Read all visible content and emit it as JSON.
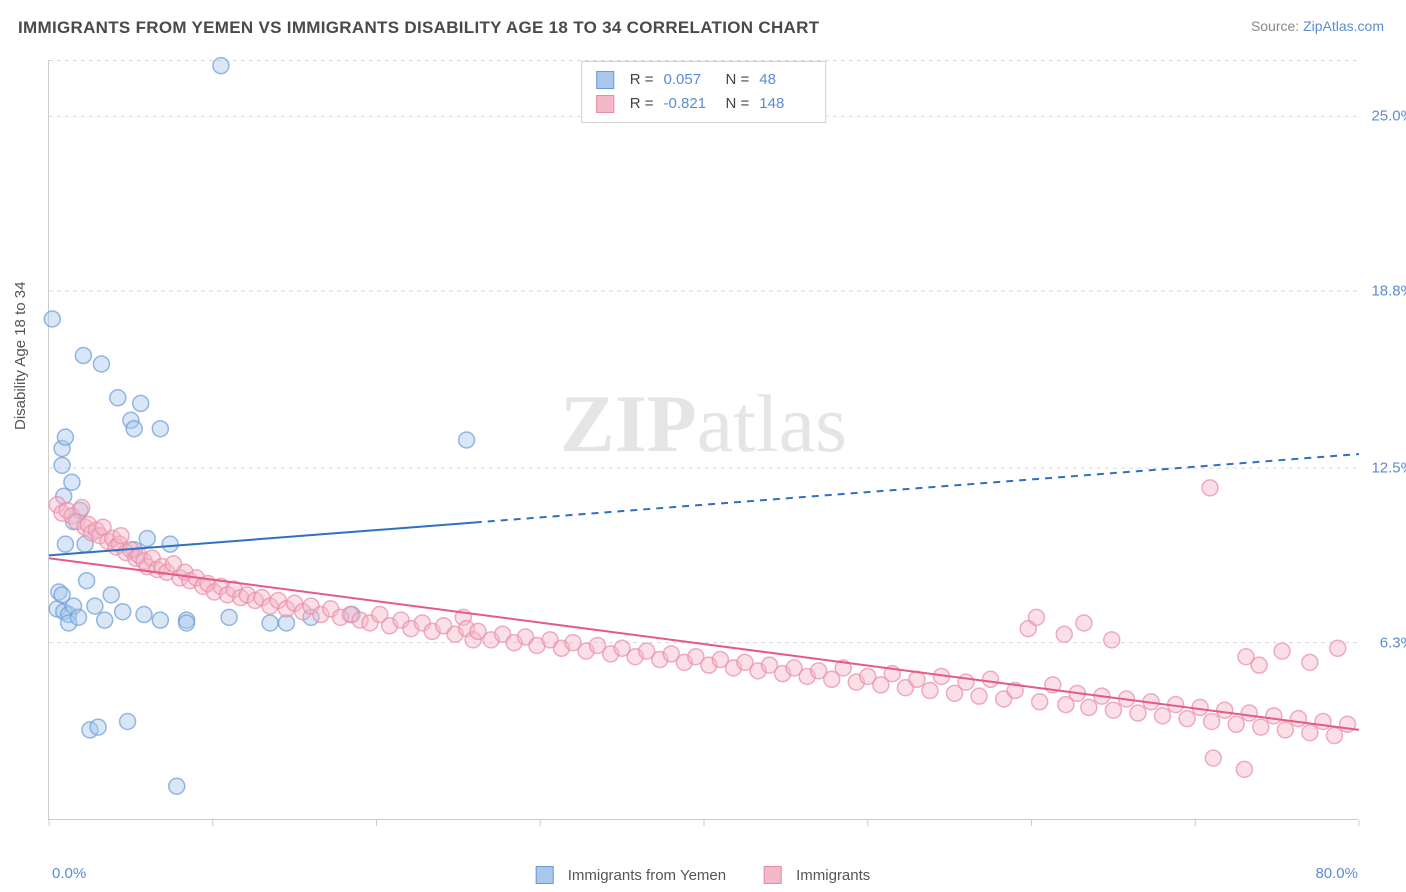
{
  "title": "IMMIGRANTS FROM YEMEN VS IMMIGRANTS DISABILITY AGE 18 TO 34 CORRELATION CHART",
  "source_label": "Source: ",
  "source_name": "ZipAtlas.com",
  "watermark_zip": "ZIP",
  "watermark_atlas": "atlas",
  "chart": {
    "type": "scatter",
    "ylabel": "Disability Age 18 to 34",
    "xlim": [
      0,
      80
    ],
    "ylim": [
      0,
      27
    ],
    "x_min_label": "0.0%",
    "x_max_label": "80.0%",
    "y_ticks": [
      6.3,
      12.5,
      18.8,
      25.0
    ],
    "y_tick_labels": [
      "6.3%",
      "12.5%",
      "18.8%",
      "25.0%"
    ],
    "x_ticks": [
      0,
      10,
      20,
      30,
      40,
      50,
      60,
      70,
      80
    ],
    "background": "#ffffff",
    "grid_color": "#d8d8d8",
    "marker_radius": 8,
    "marker_opacity": 0.45,
    "series": [
      {
        "name": "Immigrants from Yemen",
        "color_fill": "#a8c7ea",
        "color_stroke": "#6a9bd8",
        "trend": {
          "x1": 0,
          "y1": 9.4,
          "x2": 80,
          "y2": 13.0,
          "solid_until_x": 26,
          "stroke": "#2f6fc4",
          "width": 2
        },
        "R_label": "R = ",
        "R": "0.057",
        "N_label": "N = ",
        "N": "48",
        "points": [
          [
            0.2,
            17.8
          ],
          [
            0.5,
            7.5
          ],
          [
            0.6,
            8.1
          ],
          [
            0.8,
            13.2
          ],
          [
            0.8,
            12.6
          ],
          [
            0.8,
            8.0
          ],
          [
            0.9,
            11.5
          ],
          [
            0.9,
            7.4
          ],
          [
            1.0,
            13.6
          ],
          [
            1.0,
            9.8
          ],
          [
            1.2,
            7.3
          ],
          [
            1.2,
            7.0
          ],
          [
            1.4,
            12.0
          ],
          [
            1.5,
            10.6
          ],
          [
            1.5,
            7.6
          ],
          [
            1.8,
            7.2
          ],
          [
            1.9,
            11.0
          ],
          [
            2.1,
            16.5
          ],
          [
            2.2,
            9.8
          ],
          [
            2.3,
            8.5
          ],
          [
            2.5,
            3.2
          ],
          [
            2.8,
            7.6
          ],
          [
            3.0,
            3.3
          ],
          [
            3.2,
            16.2
          ],
          [
            3.4,
            7.1
          ],
          [
            3.8,
            8.0
          ],
          [
            4.2,
            15.0
          ],
          [
            4.5,
            7.4
          ],
          [
            4.8,
            3.5
          ],
          [
            5.0,
            14.2
          ],
          [
            5.2,
            13.9
          ],
          [
            5.2,
            9.6
          ],
          [
            5.6,
            14.8
          ],
          [
            5.8,
            7.3
          ],
          [
            6.0,
            10.0
          ],
          [
            6.8,
            7.1
          ],
          [
            6.8,
            13.9
          ],
          [
            7.4,
            9.8
          ],
          [
            7.8,
            1.2
          ],
          [
            8.4,
            7.1
          ],
          [
            8.4,
            7.0
          ],
          [
            10.5,
            26.8
          ],
          [
            11.0,
            7.2
          ],
          [
            13.5,
            7.0
          ],
          [
            14.5,
            7.0
          ],
          [
            16.0,
            7.2
          ],
          [
            18.5,
            7.3
          ],
          [
            25.5,
            13.5
          ]
        ]
      },
      {
        "name": "Immigrants",
        "color_fill": "#f5b8c9",
        "color_stroke": "#e88ba7",
        "trend": {
          "x1": 0,
          "y1": 9.3,
          "x2": 80,
          "y2": 3.2,
          "solid_until_x": 80,
          "stroke": "#e35a86",
          "width": 2
        },
        "R_label": "R = ",
        "R": "-0.821",
        "N_label": "N = ",
        "N": "148",
        "points": [
          [
            0.5,
            11.2
          ],
          [
            0.8,
            10.9
          ],
          [
            1.1,
            11.0
          ],
          [
            1.4,
            10.8
          ],
          [
            1.7,
            10.6
          ],
          [
            2.0,
            11.1
          ],
          [
            2.2,
            10.4
          ],
          [
            2.4,
            10.5
          ],
          [
            2.6,
            10.2
          ],
          [
            2.9,
            10.3
          ],
          [
            3.1,
            10.1
          ],
          [
            3.3,
            10.4
          ],
          [
            3.6,
            9.9
          ],
          [
            3.9,
            10.0
          ],
          [
            4.1,
            9.7
          ],
          [
            4.3,
            9.8
          ],
          [
            4.4,
            10.1
          ],
          [
            4.7,
            9.5
          ],
          [
            5.0,
            9.6
          ],
          [
            5.3,
            9.3
          ],
          [
            5.5,
            9.4
          ],
          [
            5.8,
            9.2
          ],
          [
            6.0,
            9.0
          ],
          [
            6.3,
            9.3
          ],
          [
            6.6,
            8.9
          ],
          [
            6.9,
            9.0
          ],
          [
            7.2,
            8.8
          ],
          [
            7.6,
            9.1
          ],
          [
            8.0,
            8.6
          ],
          [
            8.3,
            8.8
          ],
          [
            8.6,
            8.5
          ],
          [
            9.0,
            8.6
          ],
          [
            9.4,
            8.3
          ],
          [
            9.7,
            8.4
          ],
          [
            10.1,
            8.1
          ],
          [
            10.5,
            8.3
          ],
          [
            10.9,
            8.0
          ],
          [
            11.3,
            8.2
          ],
          [
            11.7,
            7.9
          ],
          [
            12.1,
            8.0
          ],
          [
            12.6,
            7.8
          ],
          [
            13.0,
            7.9
          ],
          [
            13.5,
            7.6
          ],
          [
            14.0,
            7.8
          ],
          [
            14.5,
            7.5
          ],
          [
            15.0,
            7.7
          ],
          [
            15.5,
            7.4
          ],
          [
            16.0,
            7.6
          ],
          [
            16.6,
            7.3
          ],
          [
            17.2,
            7.5
          ],
          [
            17.8,
            7.2
          ],
          [
            18.4,
            7.3
          ],
          [
            19.0,
            7.1
          ],
          [
            19.6,
            7.0
          ],
          [
            20.2,
            7.3
          ],
          [
            20.8,
            6.9
          ],
          [
            21.5,
            7.1
          ],
          [
            22.1,
            6.8
          ],
          [
            22.8,
            7.0
          ],
          [
            23.4,
            6.7
          ],
          [
            24.1,
            6.9
          ],
          [
            24.8,
            6.6
          ],
          [
            25.3,
            7.2
          ],
          [
            25.5,
            6.8
          ],
          [
            25.9,
            6.4
          ],
          [
            26.2,
            6.7
          ],
          [
            27.0,
            6.4
          ],
          [
            27.7,
            6.6
          ],
          [
            28.4,
            6.3
          ],
          [
            29.1,
            6.5
          ],
          [
            29.8,
            6.2
          ],
          [
            30.6,
            6.4
          ],
          [
            31.3,
            6.1
          ],
          [
            32.0,
            6.3
          ],
          [
            32.8,
            6.0
          ],
          [
            33.5,
            6.2
          ],
          [
            34.3,
            5.9
          ],
          [
            35.0,
            6.1
          ],
          [
            35.8,
            5.8
          ],
          [
            36.5,
            6.0
          ],
          [
            37.3,
            5.7
          ],
          [
            38.0,
            5.9
          ],
          [
            38.8,
            5.6
          ],
          [
            39.5,
            5.8
          ],
          [
            40.3,
            5.5
          ],
          [
            41.0,
            5.7
          ],
          [
            41.8,
            5.4
          ],
          [
            42.5,
            5.6
          ],
          [
            43.3,
            5.3
          ],
          [
            44.0,
            5.5
          ],
          [
            44.8,
            5.2
          ],
          [
            45.5,
            5.4
          ],
          [
            46.3,
            5.1
          ],
          [
            47.0,
            5.3
          ],
          [
            47.8,
            5.0
          ],
          [
            48.5,
            5.4
          ],
          [
            49.3,
            4.9
          ],
          [
            50.0,
            5.1
          ],
          [
            50.8,
            4.8
          ],
          [
            51.5,
            5.2
          ],
          [
            52.3,
            4.7
          ],
          [
            53.0,
            5.0
          ],
          [
            53.8,
            4.6
          ],
          [
            54.5,
            5.1
          ],
          [
            55.3,
            4.5
          ],
          [
            56.0,
            4.9
          ],
          [
            56.8,
            4.4
          ],
          [
            57.5,
            5.0
          ],
          [
            58.3,
            4.3
          ],
          [
            59.0,
            4.6
          ],
          [
            59.8,
            6.8
          ],
          [
            60.3,
            7.2
          ],
          [
            60.5,
            4.2
          ],
          [
            61.3,
            4.8
          ],
          [
            62.0,
            6.6
          ],
          [
            62.1,
            4.1
          ],
          [
            62.8,
            4.5
          ],
          [
            63.2,
            7.0
          ],
          [
            63.5,
            4.0
          ],
          [
            64.3,
            4.4
          ],
          [
            64.9,
            6.4
          ],
          [
            65.0,
            3.9
          ],
          [
            65.8,
            4.3
          ],
          [
            66.5,
            3.8
          ],
          [
            67.3,
            4.2
          ],
          [
            68.0,
            3.7
          ],
          [
            68.8,
            4.1
          ],
          [
            69.5,
            3.6
          ],
          [
            70.3,
            4.0
          ],
          [
            70.9,
            11.8
          ],
          [
            71.0,
            3.5
          ],
          [
            71.1,
            2.2
          ],
          [
            71.8,
            3.9
          ],
          [
            72.5,
            3.4
          ],
          [
            73.0,
            1.8
          ],
          [
            73.1,
            5.8
          ],
          [
            73.3,
            3.8
          ],
          [
            73.9,
            5.5
          ],
          [
            74.0,
            3.3
          ],
          [
            74.8,
            3.7
          ],
          [
            75.3,
            6.0
          ],
          [
            75.5,
            3.2
          ],
          [
            76.3,
            3.6
          ],
          [
            77.0,
            3.1
          ],
          [
            77.0,
            5.6
          ],
          [
            77.8,
            3.5
          ],
          [
            78.5,
            3.0
          ],
          [
            78.7,
            6.1
          ],
          [
            79.3,
            3.4
          ]
        ]
      }
    ]
  }
}
